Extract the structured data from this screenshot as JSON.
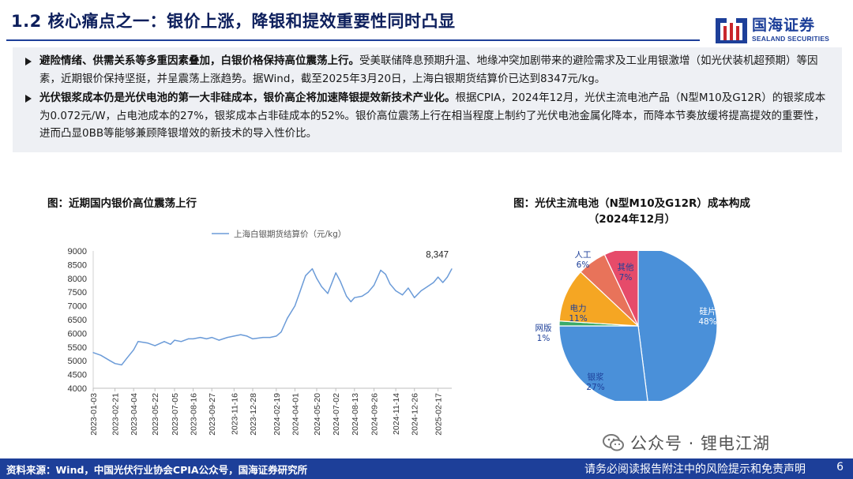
{
  "header": {
    "title": "1.2 核心痛点之一：银价上涨，降银和提效重要性同时凸显",
    "logo_cn": "国海证券",
    "logo_en": "SEALAND SECURITIES",
    "brand_color": "#1d3f99"
  },
  "summary": {
    "bullets": [
      {
        "lead": "避险情绪、供需关系等多重因素叠加，白银价格保持高位震荡上行。",
        "text": "受美联储降息预期升温、地缘冲突加剧带来的避险需求及工业用银激增（如光伏装机超预期）等因素，近期银价保持坚挺，并呈震荡上涨趋势。据Wind，截至2025年3月20日，上海白银期货结算价已达到8347元/kg。"
      },
      {
        "lead": "光伏银浆成本仍是光伏电池的第一大非硅成本，银价高企将加速降银提效新技术产业化。",
        "text": "根据CPIA，2024年12月，光伏主流电池产品（N型M10及G12R）的银浆成本为0.072元/W，占电池成本的27%，银浆成本占非硅成本的52%。银价高位震荡上行在相当程度上制约了光伏电池金属化降本，而降本节奏放缓将提高提效的重要性，进而凸显0BB等能够兼顾降银增效的新技术的导入性价比。"
      }
    ]
  },
  "chart_data": [
    {
      "type": "line",
      "title": "图：近期国内银价高位震荡上行",
      "legend": "上海白银期货结算价（元/kg）",
      "legend_position": "top",
      "ylim": [
        4000,
        9000
      ],
      "yticks": [
        "9000",
        "8500",
        "8000",
        "7500",
        "7000",
        "6500",
        "6000",
        "5500",
        "5000",
        "4500",
        "4000"
      ],
      "xticks": [
        "2023-01-03",
        "2023-02-21",
        "2023-04-04",
        "2023-05-22",
        "2023-07-05",
        "2023-08-16",
        "2023-09-27",
        "2023-11-16",
        "2023-12-28",
        "2024-02-19",
        "2024-04-01",
        "2024-05-20",
        "2024-07-02",
        "2024-08-13",
        "2024-09-26",
        "2024-11-14",
        "2024-12-26",
        "2025-02-17"
      ],
      "end_label": "8,347",
      "series": [
        {
          "name": "上海白银期货结算价（元/kg）",
          "color": "#6b9bd8",
          "x": [
            "2023-01-03",
            "2023-01-20",
            "2023-02-10",
            "2023-02-21",
            "2023-03-08",
            "2023-03-20",
            "2023-04-04",
            "2023-04-14",
            "2023-05-05",
            "2023-05-22",
            "2023-06-12",
            "2023-06-26",
            "2023-07-05",
            "2023-07-20",
            "2023-08-05",
            "2023-08-16",
            "2023-09-01",
            "2023-09-15",
            "2023-09-27",
            "2023-10-13",
            "2023-11-01",
            "2023-11-16",
            "2023-12-01",
            "2023-12-15",
            "2023-12-28",
            "2024-01-20",
            "2024-02-05",
            "2024-02-19",
            "2024-03-01",
            "2024-03-08",
            "2024-03-15",
            "2024-04-01",
            "2024-04-12",
            "2024-04-25",
            "2024-05-10",
            "2024-05-20",
            "2024-05-31",
            "2024-06-14",
            "2024-07-02",
            "2024-07-12",
            "2024-07-26",
            "2024-08-05",
            "2024-08-13",
            "2024-08-30",
            "2024-09-13",
            "2024-09-26",
            "2024-10-11",
            "2024-10-22",
            "2024-11-01",
            "2024-11-14",
            "2024-11-29",
            "2024-12-12",
            "2024-12-26",
            "2025-01-10",
            "2025-01-24",
            "2025-02-07",
            "2025-02-17",
            "2025-02-28",
            "2025-03-10",
            "2025-03-20"
          ],
          "values": [
            5300,
            5200,
            5000,
            4900,
            4850,
            5100,
            5400,
            5700,
            5650,
            5550,
            5700,
            5600,
            5750,
            5700,
            5800,
            5800,
            5850,
            5800,
            5850,
            5750,
            5850,
            5900,
            5950,
            5900,
            5800,
            5850,
            5850,
            5900,
            6050,
            6300,
            6550,
            7000,
            7500,
            8100,
            8350,
            8000,
            7700,
            7450,
            8200,
            7900,
            7350,
            7150,
            7300,
            7350,
            7500,
            7750,
            8300,
            8150,
            7800,
            7550,
            7400,
            7650,
            7300,
            7550,
            7700,
            7850,
            8050,
            7850,
            8050,
            8347
          ]
        }
      ]
    },
    {
      "type": "pie",
      "title_line1": "图：光伏主流电池（N型M10及G12R）成本构成",
      "title_line2": "（2024年12月）",
      "slices": [
        {
          "label": "硅片",
          "value": 48,
          "display": "48%",
          "color": "#4a90d9"
        },
        {
          "label": "银浆",
          "value": 27,
          "display": "27%",
          "color": "#4a90d9"
        },
        {
          "label": "网版",
          "value": 1,
          "display": "1%",
          "color": "#3aaa6a"
        },
        {
          "label": "电力",
          "value": 11,
          "display": "11%",
          "color": "#f5a623"
        },
        {
          "label": "人工",
          "value": 6,
          "display": "6%",
          "color": "#e8735a"
        },
        {
          "label": "其他",
          "value": 7,
          "display": "7%",
          "color": "#e64b6a"
        }
      ]
    }
  ],
  "watermark": {
    "text": "公众号 · 锂电江湖"
  },
  "footer": {
    "source": "资料来源：Wind，中国光伏行业协会CPIA公众号，国海证券研究所",
    "disclaimer": "请务必阅读报告附注中的风险提示和免责声明",
    "page": "6"
  }
}
